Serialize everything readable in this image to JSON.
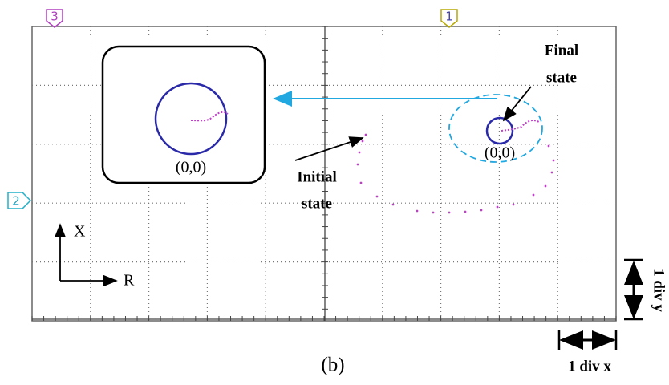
{
  "markers": {
    "top_left": "3",
    "top_right": "1",
    "left": "2"
  },
  "inset": {
    "origin": "(0,0)"
  },
  "zoom": {
    "origin": "(0,0)"
  },
  "annotations": {
    "final_line1": "Final",
    "final_line2": "state",
    "initial_line1": "Initial",
    "initial_line2": "state"
  },
  "axes_icon": {
    "vertical": "X",
    "horizontal": "R"
  },
  "scale": {
    "div_y": "1 div y",
    "div_x": "1 div x"
  },
  "caption": "(b)"
}
